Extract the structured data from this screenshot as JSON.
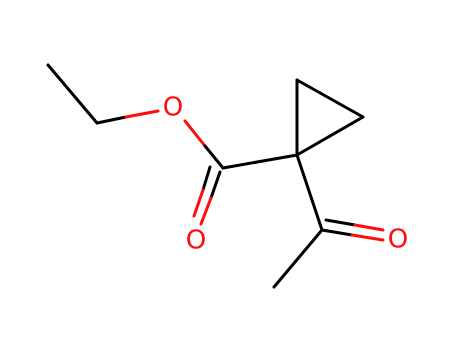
{
  "atoms": [
    {
      "label": "O"
    },
    {
      "label": "O"
    },
    {
      "label": "O"
    }
  ]
}
